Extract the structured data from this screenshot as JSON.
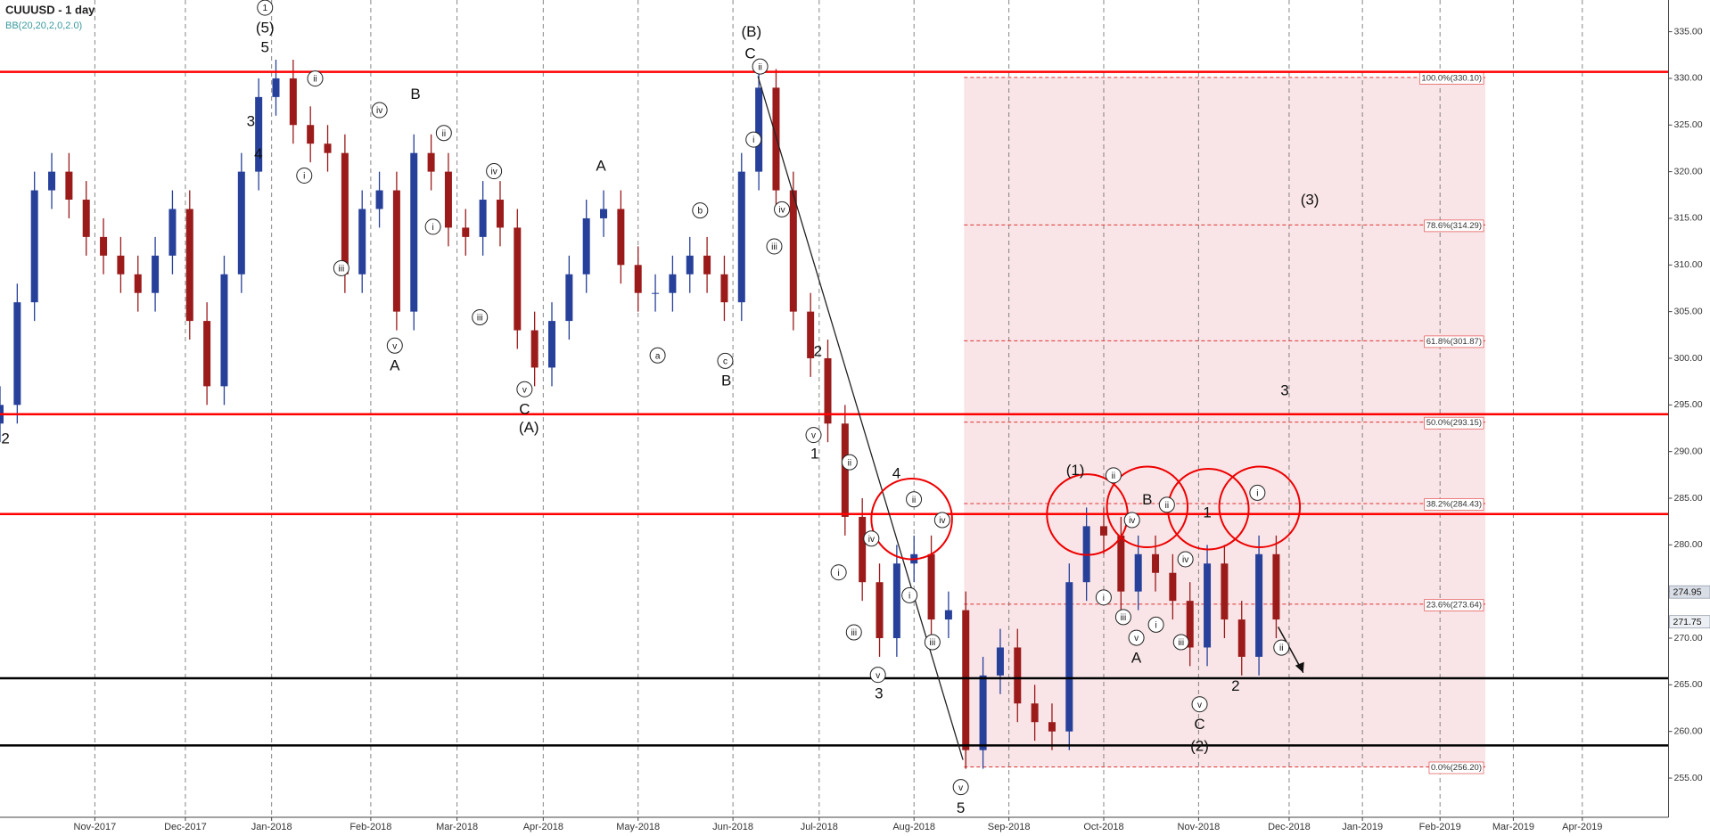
{
  "chart_data": {
    "type": "candlestick",
    "title": "CUUUSD - 1 day",
    "subtitle": "BB(20,20,2,0,2.0)",
    "x": [
      0,
      4,
      8,
      12,
      16,
      20,
      24,
      28,
      32,
      36,
      40,
      44,
      48,
      52,
      56,
      60,
      64,
      68,
      72,
      76,
      80,
      84,
      88,
      92,
      96,
      100,
      104,
      108,
      112,
      116,
      120,
      124,
      128,
      132,
      136,
      140,
      144,
      148,
      152,
      156,
      160,
      164,
      168,
      172,
      176,
      180,
      184,
      188,
      192,
      196,
      200,
      204,
      208,
      212,
      216,
      220,
      224,
      228,
      232,
      236,
      240,
      244,
      248,
      252,
      256,
      260,
      264,
      268,
      272,
      276,
      280,
      284,
      288,
      292,
      296
    ],
    "open": [
      293,
      295,
      306,
      318,
      320,
      317,
      313,
      311,
      309,
      307,
      311,
      316,
      304,
      297,
      309,
      320,
      328,
      330,
      325,
      323,
      322,
      309,
      316,
      318,
      305,
      322,
      320,
      314,
      313,
      317,
      314,
      303,
      299,
      304,
      309,
      315,
      316,
      310,
      307,
      307,
      309,
      311,
      309,
      306,
      320,
      329,
      318,
      305,
      300,
      293,
      283,
      276,
      270,
      278,
      279,
      272,
      273,
      258,
      266,
      269,
      263,
      261,
      260,
      276,
      282,
      281,
      275,
      279,
      277,
      274,
      269,
      278,
      272,
      268,
      279
    ],
    "high": [
      297,
      308,
      320,
      322,
      322,
      319,
      315,
      313,
      311,
      313,
      318,
      318,
      306,
      311,
      322,
      330,
      332,
      332,
      327,
      325,
      324,
      318,
      320,
      320,
      324,
      324,
      322,
      316,
      319,
      319,
      316,
      305,
      306,
      311,
      317,
      318,
      318,
      312,
      309,
      311,
      313,
      313,
      311,
      322,
      331,
      331,
      320,
      307,
      302,
      295,
      285,
      278,
      280,
      281,
      281,
      275,
      275,
      268,
      271,
      271,
      265,
      263,
      278,
      284,
      284,
      283,
      281,
      281,
      279,
      276,
      280,
      280,
      274,
      281,
      281
    ],
    "low": [
      291,
      293,
      304,
      316,
      315,
      311,
      309,
      307,
      305,
      305,
      309,
      302,
      295,
      295,
      307,
      318,
      326,
      323,
      321,
      320,
      307,
      307,
      314,
      303,
      303,
      318,
      312,
      311,
      311,
      312,
      301,
      297,
      297,
      302,
      307,
      313,
      308,
      305,
      305,
      305,
      307,
      307,
      304,
      304,
      318,
      316,
      303,
      298,
      291,
      281,
      274,
      268,
      268,
      276,
      270,
      270,
      256,
      256,
      264,
      261,
      259,
      258,
      258,
      274,
      279,
      273,
      273,
      275,
      272,
      267,
      267,
      270,
      266,
      266,
      270
    ],
    "close": [
      295,
      306,
      318,
      320,
      317,
      313,
      311,
      309,
      307,
      311,
      316,
      304,
      297,
      309,
      320,
      328,
      330,
      325,
      323,
      322,
      309,
      316,
      318,
      305,
      322,
      320,
      314,
      313,
      317,
      314,
      303,
      299,
      304,
      309,
      315,
      316,
      310,
      307,
      307,
      309,
      311,
      309,
      306,
      320,
      329,
      318,
      305,
      300,
      293,
      283,
      276,
      270,
      278,
      279,
      272,
      273,
      258,
      266,
      269,
      263,
      261,
      260,
      276,
      282,
      281,
      275,
      279,
      277,
      274,
      269,
      278,
      272,
      268,
      279,
      272
    ],
    "up_color": "#27409a",
    "down_color": "#9b1b1b",
    "xlim": [
      0,
      387
    ],
    "ylim": [
      250.8,
      338.4
    ],
    "xticks": [
      {
        "value": 22,
        "label": "Nov-2017"
      },
      {
        "value": 43,
        "label": "Dec-2017"
      },
      {
        "value": 63,
        "label": "Jan-2018"
      },
      {
        "value": 86,
        "label": "Feb-2018"
      },
      {
        "value": 106,
        "label": "Mar-2018"
      },
      {
        "value": 126,
        "label": "Apr-2018"
      },
      {
        "value": 148,
        "label": "May-2018"
      },
      {
        "value": 170,
        "label": "Jun-2018"
      },
      {
        "value": 190,
        "label": "Jul-2018"
      },
      {
        "value": 212,
        "label": "Aug-2018"
      },
      {
        "value": 234,
        "label": "Sep-2018"
      },
      {
        "value": 256,
        "label": "Oct-2018"
      },
      {
        "value": 278,
        "label": "Nov-2018"
      },
      {
        "value": 299,
        "label": "Dec-2018"
      },
      {
        "value": 316,
        "label": "Jan-2019"
      },
      {
        "value": 334,
        "label": "Feb-2019"
      },
      {
        "value": 351,
        "label": "Mar-2019"
      },
      {
        "value": 367,
        "label": "Apr-2019"
      }
    ],
    "yticks": [
      {
        "value": 255,
        "label": "255.00"
      },
      {
        "value": 260,
        "label": "260.00"
      },
      {
        "value": 265,
        "label": "265.00"
      },
      {
        "value": 270,
        "label": "270.00"
      },
      {
        "value": 275,
        "label": "275.00"
      },
      {
        "value": 280,
        "label": "280.00"
      },
      {
        "value": 285,
        "label": "285.00"
      },
      {
        "value": 290,
        "label": "290.00"
      },
      {
        "value": 295,
        "label": "295.00"
      },
      {
        "value": 300,
        "label": "300.00"
      },
      {
        "value": 305,
        "label": "305.00"
      },
      {
        "value": 310,
        "label": "310.00"
      },
      {
        "value": 315,
        "label": "315.00"
      },
      {
        "value": 320,
        "label": "320.00"
      },
      {
        "value": 325,
        "label": "325.00"
      },
      {
        "value": 330,
        "label": "330.00"
      },
      {
        "value": 335,
        "label": "335.00"
      }
    ],
    "grid": true,
    "resistance_levels": [
      330.7,
      294.0,
      283.3
    ],
    "resistance_color": "#ff0000",
    "support_levels": [
      265.7,
      258.5
    ],
    "support_color": "#000000",
    "fib_levels": [
      {
        "value": 330.1,
        "label": "100.0%(330.10)"
      },
      {
        "value": 314.29,
        "label": "78.6%(314.29)"
      },
      {
        "value": 301.87,
        "label": "61.8%(301.87)"
      },
      {
        "value": 293.15,
        "label": "50.0%(293.15)"
      },
      {
        "value": 284.43,
        "label": "38.2%(284.43)"
      },
      {
        "value": 273.64,
        "label": "23.6%(273.64)"
      },
      {
        "value": 256.2,
        "label": "0.0%(256.20)"
      }
    ],
    "price_labels": [
      {
        "value": 274.95,
        "label": "274.95"
      },
      {
        "value": 271.75,
        "label": "271.75"
      }
    ],
    "wave_labels": [
      "2",
      "(5)",
      "5",
      "3",
      "4",
      "B",
      "A",
      "C",
      "(A)",
      "A",
      "B",
      "(B)",
      "C",
      "2",
      "1",
      "4",
      "3",
      "5",
      "(1)",
      "B",
      "A",
      "1",
      "C",
      "(2)",
      "2",
      "(3)",
      "3"
    ],
    "subwave_labels": [
      "1",
      "ii",
      "i",
      "iii",
      "iv",
      "ii",
      "i",
      "v",
      "iv",
      "iii",
      "v",
      "a",
      "b",
      "c",
      "ii",
      "i",
      "iv",
      "iii",
      "v",
      "ii",
      "iv",
      "i",
      "iii",
      "v",
      "ii",
      "iv",
      "i",
      "iii",
      "v",
      "ii",
      "iv",
      "i",
      "iii",
      "v",
      "ii",
      "i",
      "iv",
      "iii",
      "v",
      "i",
      "ii"
    ]
  }
}
